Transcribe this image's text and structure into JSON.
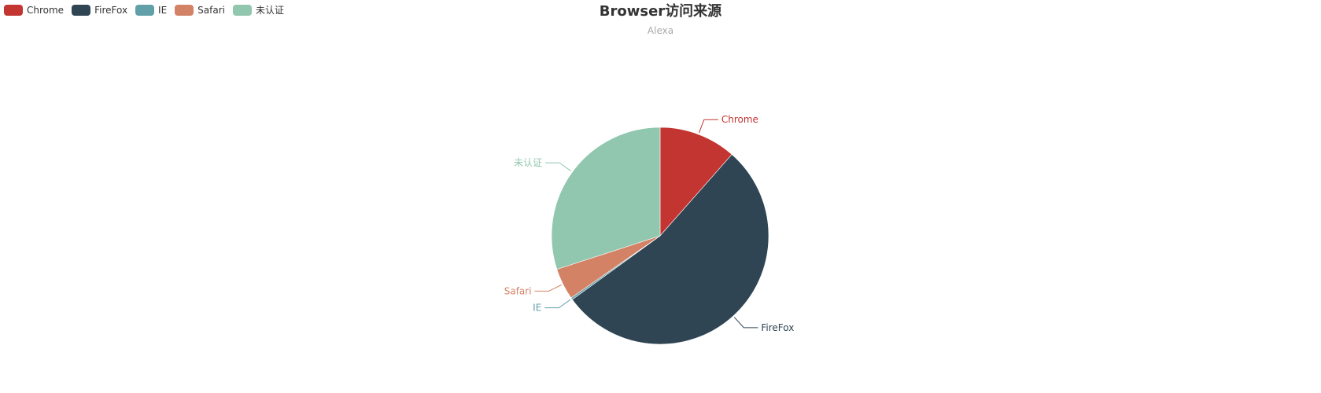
{
  "chart_data": {
    "type": "pie",
    "title": "Browser访问来源",
    "subtitle": "Alexa",
    "legend_placement": "top-left",
    "categories": [
      "Chrome",
      "FireFox",
      "IE",
      "Safari",
      "未认证"
    ],
    "values": [
      11.5,
      53.5,
      0.3,
      4.7,
      30.0
    ],
    "colors": [
      "#c23531",
      "#2f4554",
      "#61a0a8",
      "#d48265",
      "#91c7ae"
    ]
  }
}
